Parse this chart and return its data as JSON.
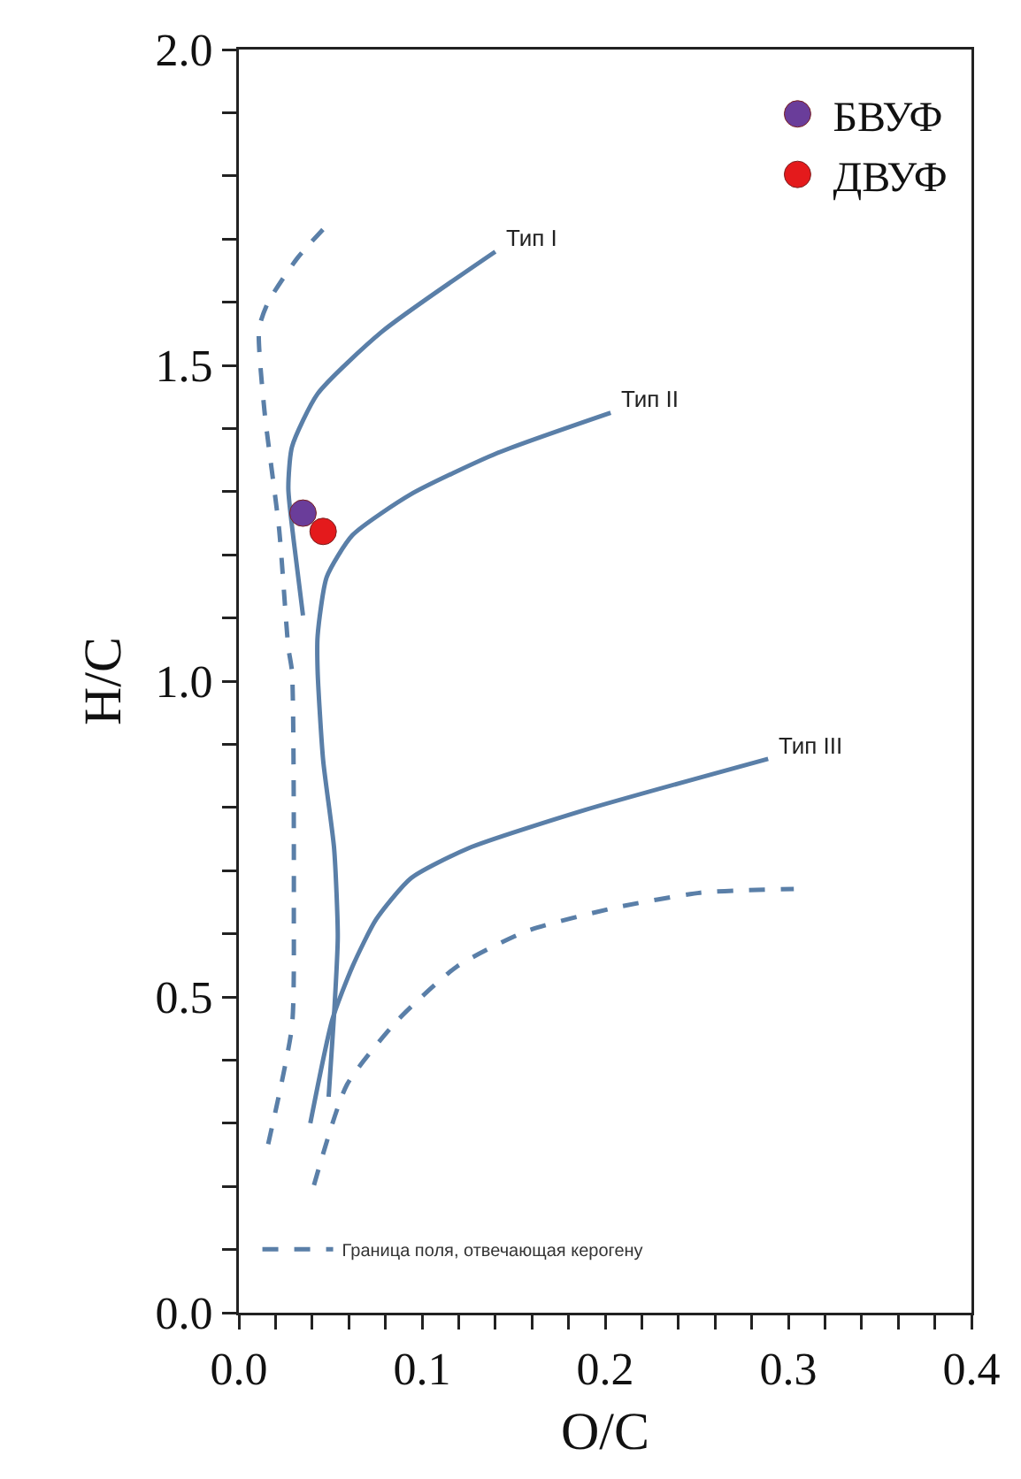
{
  "chart_data": {
    "type": "line",
    "xlabel": "O/C",
    "ylabel": "H/C",
    "xlim": [
      0,
      0.4
    ],
    "ylim": [
      0,
      2
    ],
    "xticks": [
      {
        "value": 0,
        "label": "0.0"
      },
      {
        "value": 0.02,
        "label": null
      },
      {
        "value": 0.04,
        "label": null
      },
      {
        "value": 0.06,
        "label": null
      },
      {
        "value": 0.08,
        "label": null
      },
      {
        "value": 0.1,
        "label": "0.1"
      },
      {
        "value": 0.12,
        "label": null
      },
      {
        "value": 0.14,
        "label": null
      },
      {
        "value": 0.16,
        "label": null
      },
      {
        "value": 0.18,
        "label": null
      },
      {
        "value": 0.2,
        "label": "0.2"
      },
      {
        "value": 0.22,
        "label": null
      },
      {
        "value": 0.24,
        "label": null
      },
      {
        "value": 0.26,
        "label": null
      },
      {
        "value": 0.28,
        "label": null
      },
      {
        "value": 0.3,
        "label": "0.3"
      },
      {
        "value": 0.32,
        "label": null
      },
      {
        "value": 0.34,
        "label": null
      },
      {
        "value": 0.36,
        "label": null
      },
      {
        "value": 0.38,
        "label": null
      },
      {
        "value": 0.4,
        "label": "0.4"
      }
    ],
    "yticks": [
      {
        "value": 0,
        "label": "0.0"
      },
      {
        "value": 0.1,
        "label": null
      },
      {
        "value": 0.2,
        "label": null
      },
      {
        "value": 0.3,
        "label": null
      },
      {
        "value": 0.4,
        "label": null
      },
      {
        "value": 0.5,
        "label": "0.5"
      },
      {
        "value": 0.6,
        "label": null
      },
      {
        "value": 0.7,
        "label": null
      },
      {
        "value": 0.8,
        "label": null
      },
      {
        "value": 0.9,
        "label": null
      },
      {
        "value": 1,
        "label": "1.0"
      },
      {
        "value": 1.1,
        "label": null
      },
      {
        "value": 1.2,
        "label": null
      },
      {
        "value": 1.3,
        "label": null
      },
      {
        "value": 1.4,
        "label": null
      },
      {
        "value": 1.5,
        "label": "1.5"
      },
      {
        "value": 1.6,
        "label": null
      },
      {
        "value": 1.7,
        "label": null
      },
      {
        "value": 1.8,
        "label": null
      },
      {
        "value": 1.9,
        "label": null
      },
      {
        "value": 2,
        "label": "2.0"
      }
    ],
    "grid": false,
    "legend": "top right",
    "marker": "none",
    "line_style": "solid",
    "series": [
      {
        "name": "Тип I",
        "color": "#5a7fa8",
        "x": [
          0.035,
          0.03,
          0.027,
          0.029,
          0.043,
          0.078,
          0.14
        ],
        "values": [
          1.104,
          1.221,
          1.305,
          1.371,
          1.455,
          1.553,
          1.68
        ]
      },
      {
        "name": "Тип II",
        "color": "#5a7fa8",
        "x": [
          0.049,
          0.052,
          0.054,
          0.052,
          0.046,
          0.043,
          0.043,
          0.048,
          0.062,
          0.094,
          0.141,
          0.203
        ],
        "values": [
          0.342,
          0.473,
          0.595,
          0.735,
          0.875,
          1.015,
          1.072,
          1.165,
          1.231,
          1.296,
          1.361,
          1.425
        ]
      },
      {
        "name": "Тип III",
        "color": "#5a7fa8",
        "x": [
          0.039,
          0.051,
          0.062,
          0.075,
          0.094,
          0.125,
          0.189,
          0.289
        ],
        "values": [
          0.3,
          0.464,
          0.548,
          0.623,
          0.688,
          0.735,
          0.796,
          0.877
        ]
      },
      {
        "name": "Граница поля, отвечающая керогену",
        "color": "#5a7fa8",
        "line_style": "dashed",
        "x": [
          0.016,
          0.029,
          0.03,
          0.029,
          0.027,
          0.022,
          0.014,
          0.011,
          0.016,
          0.032,
          0.051,
          null,
          0.041,
          0.059,
          0.087,
          0.119,
          0.157,
          0.205,
          0.252,
          0.303
        ],
        "values": [
          0.267,
          0.454,
          0.641,
          1.015,
          1.053,
          1.24,
          1.427,
          1.558,
          1.6,
          1.67,
          1.731,
          null,
          0.202,
          0.361,
          0.464,
          0.548,
          0.604,
          0.641,
          0.665,
          0.671
        ]
      },
      {
        "name": "БВУФ",
        "type": "scatter",
        "marker": "circle",
        "color": "#6a3d9a",
        "x": [
          0.035
        ],
        "values": [
          1.266
        ]
      },
      {
        "name": "ДВУФ",
        "type": "scatter",
        "marker": "circle",
        "color": "#e41a1c",
        "x": [
          0.046
        ],
        "values": [
          1.237
        ]
      }
    ]
  }
}
